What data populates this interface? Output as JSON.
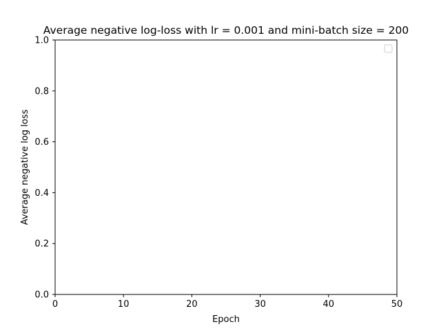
{
  "chart_data": {
    "type": "line",
    "title": "Average negative log-loss with lr = 0.001 and mini-batch size = 200",
    "xlabel": "Epoch",
    "ylabel": "Average negative log loss",
    "xlim": [
      0,
      50
    ],
    "ylim": [
      0,
      1.0
    ],
    "xticks": [
      0,
      10,
      20,
      30,
      40,
      50
    ],
    "xtick_labels": [
      "0",
      "10",
      "20",
      "30",
      "40",
      "50"
    ],
    "yticks": [
      0.0,
      0.2,
      0.4,
      0.6,
      0.8,
      1.0
    ],
    "ytick_labels": [
      "0.0",
      "0.2",
      "0.4",
      "0.6",
      "0.8",
      "1.0"
    ],
    "series": [],
    "legend": {
      "placement": "top-right",
      "entries": []
    },
    "grid": false
  },
  "colors": {
    "axes": "#000000",
    "background": "#ffffff",
    "legend_border": "#cccccc"
  }
}
